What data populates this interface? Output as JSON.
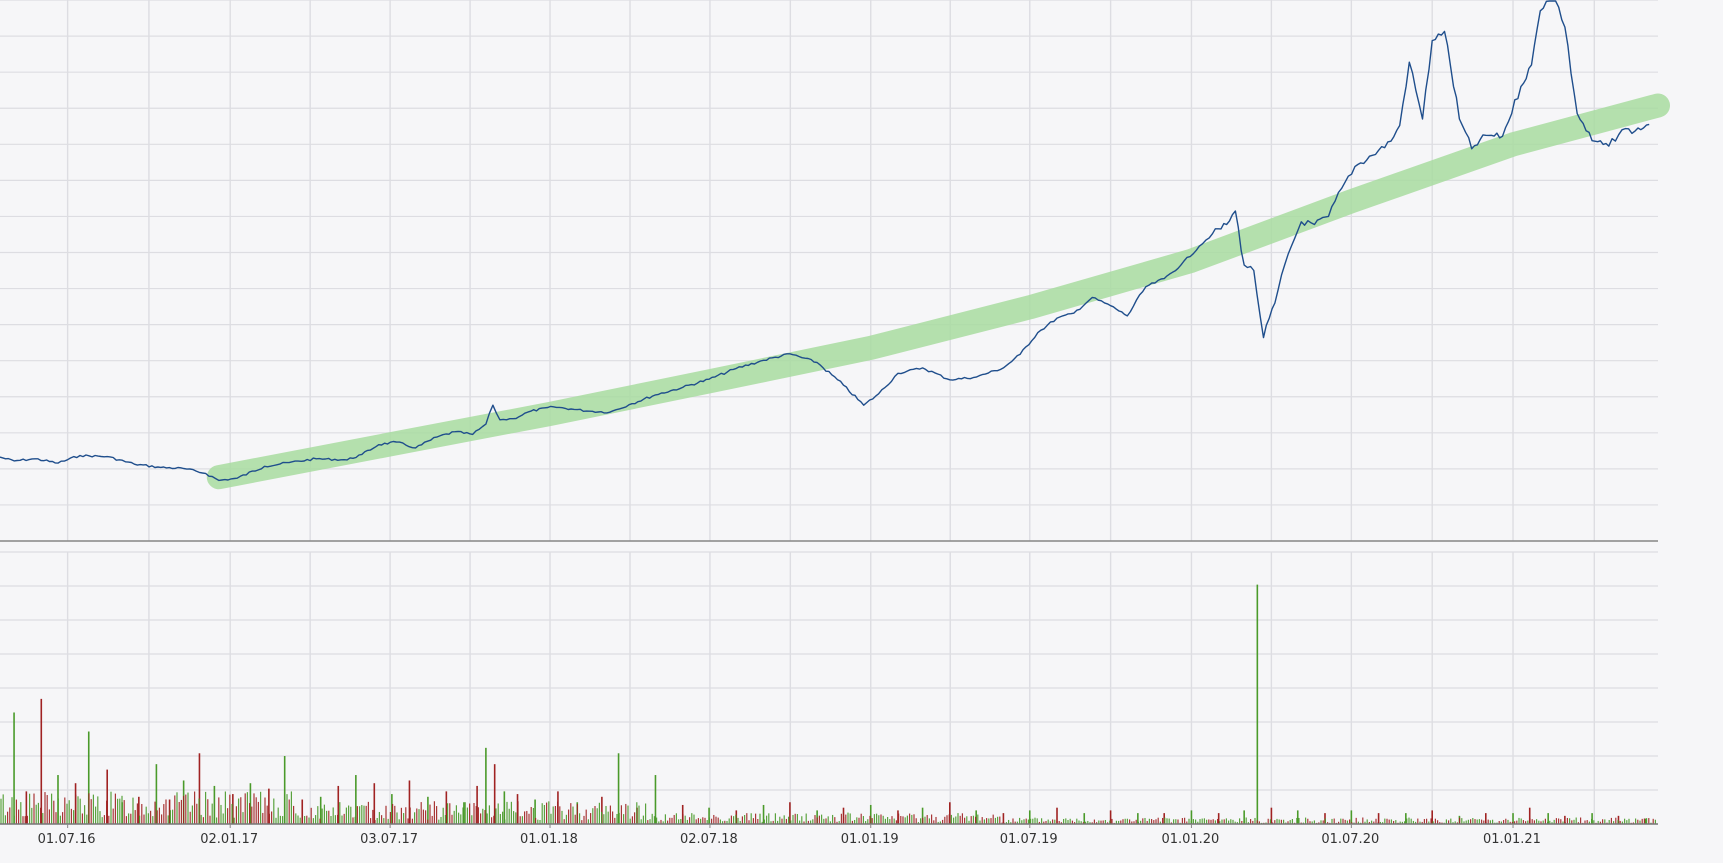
{
  "chart_data": {
    "type": "line",
    "title": "",
    "xlabel": "",
    "ylabel": "",
    "grid": true,
    "x_ticks": [
      "01.07.16",
      "02.01.17",
      "03.07.17",
      "01.01.18",
      "02.07.18",
      "01.01.19",
      "01.07.19",
      "01.01.20",
      "01.07.20",
      "01.01.21"
    ],
    "x_tick_dates": [
      "2016-07-01",
      "2017-01-02",
      "2017-07-03",
      "2018-01-01",
      "2018-07-02",
      "2019-01-01",
      "2019-07-01",
      "2020-01-01",
      "2020-07-01",
      "2021-01-01"
    ],
    "x_range": [
      "2016-04-15",
      "2021-06-15"
    ],
    "price_y_range": [
      0,
      100
    ],
    "volume_y_range": [
      0,
      100
    ],
    "price_series": {
      "x": [
        "2016-04-15",
        "2016-05-01",
        "2016-05-25",
        "2016-06-20",
        "2016-07-15",
        "2016-08-15",
        "2016-09-15",
        "2016-10-15",
        "2016-11-10",
        "2016-12-05",
        "2016-12-20",
        "2017-01-10",
        "2017-02-10",
        "2017-03-10",
        "2017-04-10",
        "2017-05-15",
        "2017-06-01",
        "2017-06-20",
        "2017-07-10",
        "2017-08-01",
        "2017-08-25",
        "2017-09-15",
        "2017-10-05",
        "2017-10-20",
        "2017-10-28",
        "2017-11-05",
        "2017-11-20",
        "2017-12-10",
        "2018-01-05",
        "2018-01-25",
        "2018-02-15",
        "2018-03-10",
        "2018-04-01",
        "2018-05-01",
        "2018-06-01",
        "2018-07-01",
        "2018-08-01",
        "2018-09-01",
        "2018-10-01",
        "2018-11-01",
        "2018-12-01",
        "2018-12-24",
        "2019-01-10",
        "2019-02-01",
        "2019-03-01",
        "2019-04-01",
        "2019-05-01",
        "2019-06-01",
        "2019-06-20",
        "2019-07-10",
        "2019-08-01",
        "2019-08-20",
        "2019-09-10",
        "2019-10-01",
        "2019-10-20",
        "2019-11-10",
        "2019-12-01",
        "2019-12-20",
        "2020-01-10",
        "2020-01-25",
        "2020-02-10",
        "2020-02-20",
        "2020-03-01",
        "2020-03-12",
        "2020-03-23",
        "2020-04-05",
        "2020-04-20",
        "2020-05-05",
        "2020-05-20",
        "2020-06-05",
        "2020-06-20",
        "2020-07-05",
        "2020-07-25",
        "2020-08-15",
        "2020-08-25",
        "2020-09-05",
        "2020-09-20",
        "2020-10-01",
        "2020-10-15",
        "2020-11-01",
        "2020-11-15",
        "2020-12-01",
        "2020-12-20",
        "2021-01-10",
        "2021-01-22",
        "2021-02-01",
        "2021-02-15",
        "2021-03-01",
        "2021-03-15",
        "2021-04-01",
        "2021-04-20",
        "2021-05-05",
        "2021-05-20",
        "2021-06-05"
      ],
      "y": [
        15.5,
        14.8,
        15.2,
        14.4,
        15.8,
        15.6,
        14.2,
        13.6,
        13.4,
        12.5,
        11.2,
        11.6,
        13.8,
        14.5,
        15.2,
        15.0,
        16.0,
        17.8,
        18.3,
        17.2,
        19.2,
        20.2,
        19.7,
        21.6,
        25.1,
        22.4,
        22.6,
        24.0,
        24.8,
        24.4,
        24.0,
        23.8,
        25.2,
        27.0,
        28.4,
        29.9,
        31.9,
        33.4,
        34.6,
        33.0,
        28.8,
        25.1,
        27.2,
        31.0,
        32.0,
        29.8,
        30.3,
        32.0,
        34.5,
        38.5,
        41.2,
        42.1,
        45.0,
        43.5,
        41.6,
        47.0,
        48.5,
        51.0,
        54.5,
        56.8,
        58.5,
        61.0,
        51.0,
        50.0,
        37.6,
        44.0,
        53.0,
        59.0,
        58.5,
        60.0,
        65.2,
        69.2,
        71.3,
        73.9,
        76.8,
        88.5,
        78.0,
        92.5,
        94.2,
        78.0,
        72.5,
        75.0,
        74.8,
        84.0,
        88.0,
        98.0,
        102.0,
        95.0,
        79.0,
        74.0,
        73.0,
        76.0,
        75.8,
        77.0
      ]
    },
    "trend_band": {
      "x": [
        "2016-12-20",
        "2017-07-01",
        "2018-01-01",
        "2018-07-01",
        "2019-01-01",
        "2019-07-01",
        "2020-01-01",
        "2020-07-01",
        "2021-01-01",
        "2021-06-15"
      ],
      "y": [
        11.8,
        17.8,
        23.5,
        29.5,
        35.7,
        43.2,
        51.8,
        62.8,
        73.3,
        80.5
      ]
    },
    "volume_series": {
      "x": [
        "2016-05-01",
        "2016-05-15",
        "2016-06-01",
        "2016-06-20",
        "2016-07-10",
        "2016-07-25",
        "2016-08-15",
        "2016-09-01",
        "2016-09-20",
        "2016-10-10",
        "2016-10-25",
        "2016-11-10",
        "2016-11-28",
        "2016-12-15",
        "2017-01-05",
        "2017-01-25",
        "2017-02-15",
        "2017-03-05",
        "2017-03-25",
        "2017-04-15",
        "2017-05-05",
        "2017-05-25",
        "2017-06-15",
        "2017-07-05",
        "2017-07-25",
        "2017-08-15",
        "2017-09-05",
        "2017-09-25",
        "2017-10-10",
        "2017-10-20",
        "2017-10-30",
        "2017-11-10",
        "2017-11-25",
        "2017-12-15",
        "2018-01-10",
        "2018-02-01",
        "2018-03-01",
        "2018-03-20",
        "2018-04-10",
        "2018-05-01",
        "2018-06-01",
        "2018-07-01",
        "2018-08-01",
        "2018-09-01",
        "2018-10-01",
        "2018-11-01",
        "2018-12-01",
        "2019-01-01",
        "2019-02-01",
        "2019-03-01",
        "2019-04-01",
        "2019-05-01",
        "2019-06-01",
        "2019-07-01",
        "2019-08-01",
        "2019-09-01",
        "2019-10-01",
        "2019-11-01",
        "2019-12-01",
        "2020-01-01",
        "2020-02-01",
        "2020-03-01",
        "2020-03-16",
        "2020-04-01",
        "2020-05-01",
        "2020-06-01",
        "2020-07-01",
        "2020-08-01",
        "2020-09-01",
        "2020-10-01",
        "2020-11-01",
        "2020-12-01",
        "2021-01-01",
        "2021-01-20",
        "2021-02-10",
        "2021-03-01",
        "2021-04-01",
        "2021-05-01",
        "2021-06-01"
      ],
      "values": [
        41,
        12,
        46,
        18,
        15,
        34,
        20,
        8,
        10,
        22,
        9,
        16,
        26,
        14,
        11,
        15,
        13,
        25,
        9,
        10,
        14,
        18,
        15,
        11,
        16,
        10,
        12,
        8,
        14,
        28,
        22,
        12,
        11,
        9,
        12,
        8,
        10,
        26,
        6,
        18,
        7,
        6,
        5,
        7,
        8,
        5,
        6,
        7,
        5,
        6,
        8,
        5,
        4,
        5,
        6,
        4,
        5,
        4,
        4,
        5,
        4,
        5,
        88,
        6,
        5,
        4,
        5,
        4,
        4,
        5,
        3,
        4,
        4,
        6,
        4,
        3,
        4,
        3,
        2
      ],
      "direction": [
        "up",
        "down",
        "down",
        "up",
        "down",
        "up",
        "down",
        "up",
        "down",
        "up",
        "down",
        "up",
        "down",
        "up",
        "down",
        "up",
        "down",
        "up",
        "down",
        "up",
        "down",
        "up",
        "down",
        "up",
        "down",
        "up",
        "down",
        "up",
        "down",
        "up",
        "down",
        "up",
        "down",
        "up",
        "down",
        "up",
        "down",
        "up",
        "down",
        "up",
        "down",
        "up",
        "down",
        "up",
        "down",
        "up",
        "down",
        "up",
        "down",
        "up",
        "down",
        "up",
        "down",
        "up",
        "down",
        "up",
        "down",
        "up",
        "down",
        "up",
        "down",
        "up",
        "up",
        "down",
        "up",
        "down",
        "up",
        "down",
        "up",
        "down",
        "up",
        "down",
        "up",
        "down",
        "up",
        "down",
        "up",
        "down",
        "up"
      ]
    },
    "colors": {
      "price_line": "#1f4e8c",
      "trend_band": "#a8dca0",
      "volume_up": "#4a9a2a",
      "volume_down": "#a02222",
      "grid": "#dddde2",
      "axis": "#888888",
      "background": "#f6f6f8"
    }
  }
}
